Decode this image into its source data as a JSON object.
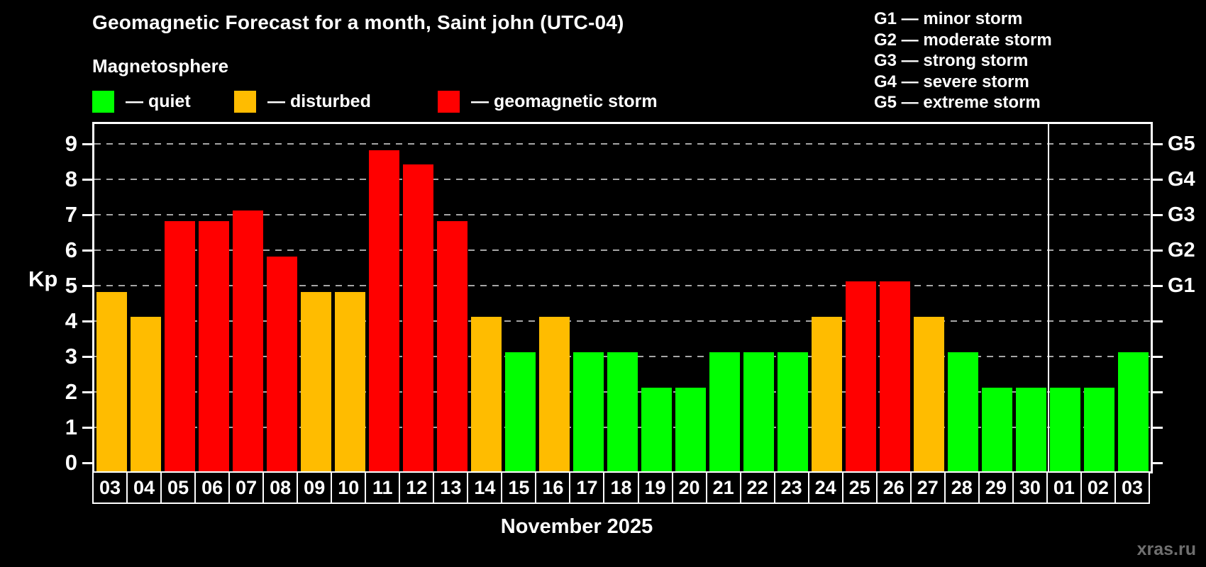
{
  "page": {
    "title": "Geomagnetic Forecast for a month, Saint john (UTC-04)",
    "subtitle": "Magnetosphere",
    "watermark": "xras.ru"
  },
  "legend": {
    "items": [
      {
        "key": "quiet",
        "label": "— quiet",
        "color": "#00ff00"
      },
      {
        "key": "disturbed",
        "label": "— disturbed",
        "color": "#ffbc00"
      },
      {
        "key": "storm",
        "label": "— geomagnetic storm",
        "color": "#ff0000"
      }
    ]
  },
  "g_scale_legend": {
    "items": [
      "G1 — minor storm",
      "G2 — moderate storm",
      "G3 — strong storm",
      "G4 — severe storm",
      "G5 — extreme storm"
    ]
  },
  "chart_data": {
    "type": "bar",
    "title": "Geomagnetic Forecast for a month, Saint john (UTC-04)",
    "ylabel": "Kp",
    "xlabel": "November 2025",
    "ylim": [
      0,
      9
    ],
    "yticks": [
      0,
      1,
      2,
      3,
      4,
      5,
      6,
      7,
      8,
      9
    ],
    "grid": "horizontal dashed gray lines at Kp 1-9",
    "legend_position": "top-left",
    "right_axis_labels": [
      {
        "value": 5,
        "label": "G1"
      },
      {
        "value": 6,
        "label": "G2"
      },
      {
        "value": 7,
        "label": "G3"
      },
      {
        "value": 8,
        "label": "G4"
      },
      {
        "value": 9,
        "label": "G5"
      }
    ],
    "categories": [
      "03",
      "04",
      "05",
      "06",
      "07",
      "08",
      "09",
      "10",
      "11",
      "12",
      "13",
      "14",
      "15",
      "16",
      "17",
      "18",
      "19",
      "20",
      "21",
      "22",
      "23",
      "24",
      "25",
      "26",
      "27",
      "28",
      "29",
      "30",
      "01",
      "02",
      "03"
    ],
    "values": [
      4.7,
      4,
      6.7,
      6.7,
      7,
      5.7,
      4.7,
      4.7,
      8.7,
      8.3,
      6.7,
      4,
      3,
      4,
      3,
      3,
      2,
      2,
      3,
      3,
      3,
      4,
      5,
      5,
      4,
      3,
      2,
      2,
      2,
      2,
      3
    ],
    "statuses": [
      "disturbed",
      "disturbed",
      "storm",
      "storm",
      "storm",
      "storm",
      "disturbed",
      "disturbed",
      "storm",
      "storm",
      "storm",
      "disturbed",
      "quiet",
      "disturbed",
      "quiet",
      "quiet",
      "quiet",
      "quiet",
      "quiet",
      "quiet",
      "quiet",
      "disturbed",
      "storm",
      "storm",
      "disturbed",
      "quiet",
      "quiet",
      "quiet",
      "quiet",
      "quiet",
      "quiet"
    ],
    "status_colors": {
      "quiet": "#00ff00",
      "disturbed": "#ffbc00",
      "storm": "#ff0000"
    },
    "month_separator_after_index": 27
  }
}
